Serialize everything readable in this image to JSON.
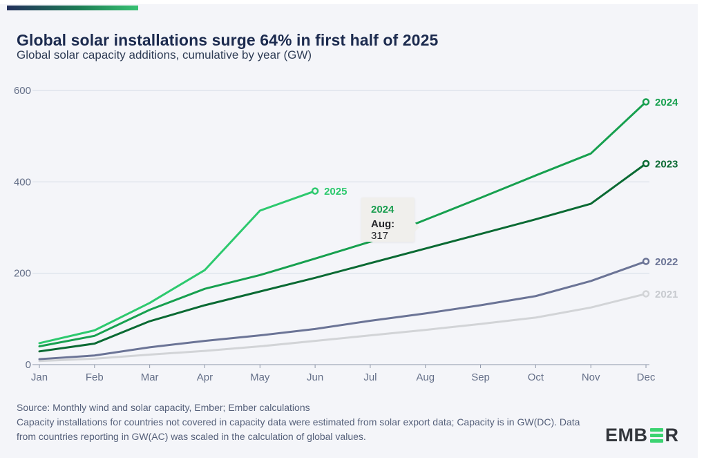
{
  "header": {
    "title": "Global solar installations surge 64% in first half of 2025",
    "subtitle": "Global solar capacity additions, cumulative by year (GW)"
  },
  "chart_data": {
    "type": "line",
    "title": "Global solar capacity additions, cumulative by year (GW)",
    "x": [
      "Jan",
      "Feb",
      "Mar",
      "Apr",
      "May",
      "Jun",
      "Jul",
      "Aug",
      "Sep",
      "Oct",
      "Nov",
      "Dec"
    ],
    "xlabel": "",
    "ylabel": "GW",
    "ylim": [
      0,
      600
    ],
    "yticks": [
      0,
      200,
      400,
      600
    ],
    "grid": true,
    "legend_position": "line-end-labels",
    "series": [
      {
        "name": "2021",
        "color": "#d2d4d7",
        "label_color": "#c7cacf",
        "values": [
          8,
          13,
          22,
          30,
          40,
          52,
          64,
          76,
          89,
          103,
          125,
          155
        ]
      },
      {
        "name": "2022",
        "color": "#6b7496",
        "label_color": "#6b7496",
        "values": [
          12,
          20,
          38,
          52,
          64,
          78,
          96,
          112,
          130,
          150,
          183,
          226
        ]
      },
      {
        "name": "2023",
        "color": "#0a6a33",
        "label_color": "#0a6a33",
        "values": [
          29,
          46,
          95,
          130,
          160,
          190,
          222,
          254,
          286,
          318,
          352,
          440
        ]
      },
      {
        "name": "2024",
        "color": "#17a04f",
        "label_color": "#17a04f",
        "values": [
          40,
          63,
          120,
          166,
          196,
          232,
          269,
          317,
          365,
          414,
          462,
          575
        ]
      },
      {
        "name": "2025",
        "color": "#2dc96e",
        "label_color": "#2dc96e",
        "values": [
          47,
          75,
          135,
          207,
          337,
          380
        ]
      }
    ]
  },
  "tooltip": {
    "series": "2024",
    "month_label": "Aug:",
    "value": "317",
    "accent": "#1b9e50"
  },
  "footer": {
    "source_line": "Source: Monthly wind and solar capacity, Ember; Ember calculations",
    "note_line": "Capacity installations for countries not covered in capacity data were estimated from solar export data; Capacity is in GW(DC). Data from countries reporting in GW(AC) was scaled in the calculation of global values."
  },
  "logo": {
    "alt": "EMBER",
    "prefix": "EMB",
    "suffix": "R"
  },
  "colors": {
    "background": "#f4f5f9",
    "title": "#1b2a4e",
    "axis_label": "#646f88",
    "gridline": "#d5dae5",
    "axis_line": "#8e97a9",
    "brand_gradient_start": "#222f5b",
    "brand_gradient_end": "#38c172"
  }
}
